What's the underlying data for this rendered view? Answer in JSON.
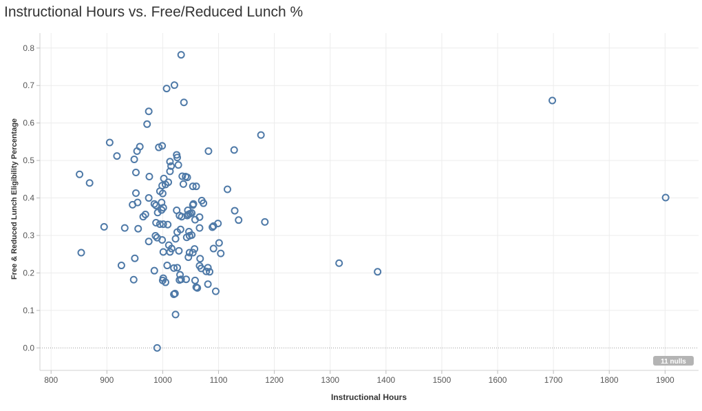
{
  "chart_data": {
    "type": "scatter",
    "title": "Instructional Hours vs. Free/Reduced Lunch %",
    "xlabel": "Instructional Hours",
    "ylabel": "Free & Reduced Lunch Eligibility Percentage",
    "xlim": [
      780,
      1960
    ],
    "ylim": [
      -0.06,
      0.84
    ],
    "xticks": [
      800,
      900,
      1000,
      1100,
      1200,
      1300,
      1400,
      1500,
      1600,
      1700,
      1800,
      1900
    ],
    "yticks": [
      0.0,
      0.1,
      0.2,
      0.3,
      0.4,
      0.5,
      0.6,
      0.7,
      0.8
    ],
    "ytick_labels": [
      "0.0",
      "0.1",
      "0.2",
      "0.3",
      "0.4",
      "0.5",
      "0.6",
      "0.7",
      "0.8"
    ],
    "grid": true,
    "nulls_badge": "11 nulls",
    "point_color": "#4e79a7",
    "points": [
      [
        1033,
        0.782
      ],
      [
        1021,
        0.701
      ],
      [
        1007,
        0.692
      ],
      [
        1038,
        0.655
      ],
      [
        975,
        0.631
      ],
      [
        972,
        0.597
      ],
      [
        1698,
        0.66
      ],
      [
        905,
        0.548
      ],
      [
        1176,
        0.568
      ],
      [
        1128,
        0.528
      ],
      [
        1082,
        0.525
      ],
      [
        959,
        0.537
      ],
      [
        954,
        0.525
      ],
      [
        993,
        0.535
      ],
      [
        999,
        0.539
      ],
      [
        918,
        0.512
      ],
      [
        1025,
        0.515
      ],
      [
        1026,
        0.508
      ],
      [
        949,
        0.503
      ],
      [
        1013,
        0.497
      ],
      [
        1028,
        0.488
      ],
      [
        1015,
        0.485
      ],
      [
        1013,
        0.471
      ],
      [
        851,
        0.463
      ],
      [
        952,
        0.468
      ],
      [
        976,
        0.457
      ],
      [
        1002,
        0.452
      ],
      [
        1035,
        0.458
      ],
      [
        1041,
        0.457
      ],
      [
        1044,
        0.455
      ],
      [
        1010,
        0.442
      ],
      [
        869,
        0.44
      ],
      [
        1005,
        0.436
      ],
      [
        999,
        0.433
      ],
      [
        1037,
        0.437
      ],
      [
        1054,
        0.431
      ],
      [
        1060,
        0.431
      ],
      [
        1116,
        0.423
      ],
      [
        952,
        0.413
      ],
      [
        995,
        0.418
      ],
      [
        1000,
        0.412
      ],
      [
        975,
        0.4
      ],
      [
        1070,
        0.393
      ],
      [
        1901,
        0.401
      ],
      [
        955,
        0.388
      ],
      [
        998,
        0.388
      ],
      [
        946,
        0.382
      ],
      [
        985,
        0.384
      ],
      [
        988,
        0.38
      ],
      [
        1055,
        0.384
      ],
      [
        1054,
        0.381
      ],
      [
        1073,
        0.386
      ],
      [
        1001,
        0.374
      ],
      [
        998,
        0.368
      ],
      [
        1025,
        0.367
      ],
      [
        1045,
        0.367
      ],
      [
        1129,
        0.366
      ],
      [
        969,
        0.356
      ],
      [
        991,
        0.361
      ],
      [
        965,
        0.35
      ],
      [
        1030,
        0.353
      ],
      [
        1034,
        0.35
      ],
      [
        1044,
        0.353
      ],
      [
        1046,
        0.356
      ],
      [
        1049,
        0.358
      ],
      [
        1052,
        0.36
      ],
      [
        1058,
        0.342
      ],
      [
        1066,
        0.349
      ],
      [
        1136,
        0.341
      ],
      [
        1183,
        0.336
      ],
      [
        895,
        0.323
      ],
      [
        932,
        0.32
      ],
      [
        956,
        0.318
      ],
      [
        988,
        0.334
      ],
      [
        995,
        0.33
      ],
      [
        1001,
        0.33
      ],
      [
        1009,
        0.329
      ],
      [
        1032,
        0.316
      ],
      [
        1026,
        0.309
      ],
      [
        1047,
        0.31
      ],
      [
        1048,
        0.299
      ],
      [
        1052,
        0.301
      ],
      [
        1066,
        0.32
      ],
      [
        1091,
        0.325
      ],
      [
        1099,
        0.332
      ],
      [
        1089,
        0.322
      ],
      [
        987,
        0.299
      ],
      [
        990,
        0.294
      ],
      [
        975,
        0.284
      ],
      [
        999,
        0.288
      ],
      [
        1023,
        0.291
      ],
      [
        1043,
        0.295
      ],
      [
        1011,
        0.274
      ],
      [
        1016,
        0.265
      ],
      [
        1013,
        0.256
      ],
      [
        1001,
        0.256
      ],
      [
        1029,
        0.259
      ],
      [
        1048,
        0.254
      ],
      [
        1054,
        0.254
      ],
      [
        1057,
        0.264
      ],
      [
        1091,
        0.265
      ],
      [
        1101,
        0.28
      ],
      [
        1104,
        0.252
      ],
      [
        854,
        0.254
      ],
      [
        950,
        0.239
      ],
      [
        1046,
        0.242
      ],
      [
        1067,
        0.238
      ],
      [
        1008,
        0.22
      ],
      [
        1020,
        0.213
      ],
      [
        1026,
        0.214
      ],
      [
        1066,
        0.219
      ],
      [
        1069,
        0.212
      ],
      [
        1078,
        0.204
      ],
      [
        1081,
        0.214
      ],
      [
        1084,
        0.203
      ],
      [
        926,
        0.22
      ],
      [
        985,
        0.206
      ],
      [
        1031,
        0.195
      ],
      [
        1001,
        0.186
      ],
      [
        1000,
        0.18
      ],
      [
        1030,
        0.181
      ],
      [
        1033,
        0.183
      ],
      [
        1042,
        0.183
      ],
      [
        1058,
        0.18
      ],
      [
        1005,
        0.175
      ],
      [
        1081,
        0.17
      ],
      [
        948,
        0.182
      ],
      [
        1060,
        0.162
      ],
      [
        1062,
        0.16
      ],
      [
        1095,
        0.151
      ],
      [
        1020,
        0.143
      ],
      [
        1022,
        0.145
      ],
      [
        1023,
        0.089
      ],
      [
        990,
        0.0
      ],
      [
        1316,
        0.226
      ],
      [
        1385,
        0.203
      ]
    ]
  }
}
